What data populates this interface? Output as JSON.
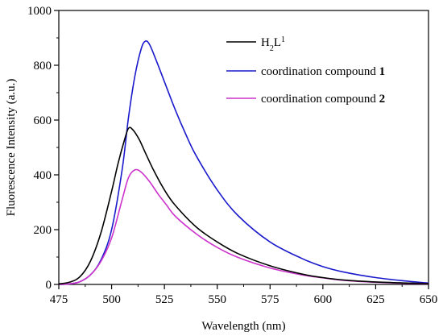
{
  "chart_data": {
    "type": "line",
    "xlabel": "Wavelength (nm)",
    "ylabel": "Fluorescence Intensity (a.u.)",
    "xlim": [
      475,
      650
    ],
    "ylim": [
      0,
      1000
    ],
    "xticks": [
      "475",
      "500",
      "525",
      "550",
      "575",
      "600",
      "625",
      "650"
    ],
    "yticks": [
      "0",
      "200",
      "400",
      "600",
      "800",
      "1000"
    ],
    "legend_position": "top-right",
    "series": [
      {
        "name_main": "H",
        "name_sub": "2",
        "name_mid": "L",
        "name_sup": "1",
        "color": "#000000",
        "x": [
          475,
          480,
          485,
          490,
          495,
          500,
          503,
          506,
          508,
          510,
          513,
          516,
          520,
          525,
          530,
          540,
          550,
          560,
          575,
          590,
          600,
          610,
          625,
          640,
          650
        ],
        "y": [
          2,
          8,
          28,
          85,
          190,
          340,
          440,
          525,
          570,
          565,
          530,
          480,
          415,
          345,
          290,
          210,
          155,
          112,
          68,
          38,
          25,
          16,
          9,
          5,
          3
        ]
      },
      {
        "name_main": "coordination compound ",
        "name_bold": "1",
        "color": "#1a1acc",
        "x": [
          475,
          480,
          485,
          490,
          495,
          500,
          505,
          508,
          511,
          514,
          516,
          518,
          521,
          525,
          530,
          535,
          540,
          550,
          560,
          575,
          590,
          600,
          610,
          625,
          640,
          650
        ],
        "y": [
          0,
          2,
          10,
          35,
          90,
          200,
          420,
          610,
          760,
          860,
          888,
          875,
          820,
          740,
          640,
          550,
          470,
          345,
          250,
          155,
          95,
          65,
          45,
          25,
          12,
          5
        ]
      },
      {
        "name_main": "coordination compound ",
        "name_bold": "2",
        "color": "#cc33cc",
        "x": [
          475,
          480,
          485,
          490,
          495,
          500,
          505,
          508,
          511,
          514,
          518,
          522,
          526,
          530,
          540,
          550,
          560,
          575,
          590,
          600,
          610,
          625,
          640,
          650
        ],
        "y": [
          0,
          2,
          10,
          35,
          85,
          170,
          310,
          390,
          418,
          410,
          375,
          330,
          290,
          250,
          185,
          135,
          98,
          60,
          35,
          24,
          15,
          8,
          4,
          2
        ]
      }
    ]
  }
}
